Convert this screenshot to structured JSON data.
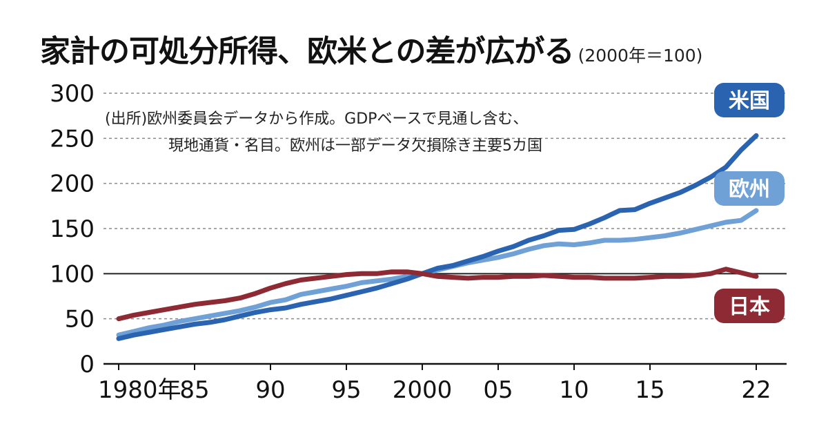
{
  "title": "家計の可処分所得、欧米との差が広がる",
  "subtitle": "(2000年＝100)",
  "note_line1": "(出所)欧州委員会データから作成。GDPベースで見通し含む、",
  "note_line2": "現地通貨・名目。欧州は一部データ欠損除き主要5カ国",
  "chart_data": {
    "type": "line",
    "x": [
      1980,
      1981,
      1982,
      1983,
      1984,
      1985,
      1986,
      1987,
      1988,
      1989,
      1990,
      1991,
      1992,
      1993,
      1994,
      1995,
      1996,
      1997,
      1998,
      1999,
      2000,
      2001,
      2002,
      2003,
      2004,
      2005,
      2006,
      2007,
      2008,
      2009,
      2010,
      2011,
      2012,
      2013,
      2014,
      2015,
      2016,
      2017,
      2018,
      2019,
      2020,
      2021,
      2022
    ],
    "x_ticks": [
      {
        "value": 1980,
        "label": "1980年"
      },
      {
        "value": 1985,
        "label": "85"
      },
      {
        "value": 1990,
        "label": "90"
      },
      {
        "value": 1995,
        "label": "95"
      },
      {
        "value": 2000,
        "label": "2000"
      },
      {
        "value": 2005,
        "label": "05"
      },
      {
        "value": 2010,
        "label": "10"
      },
      {
        "value": 2015,
        "label": "15"
      },
      {
        "value": 2022,
        "label": "22"
      }
    ],
    "y_ticks": [
      0,
      50,
      100,
      150,
      200,
      250,
      300
    ],
    "xlim": [
      1979,
      2024
    ],
    "ylim": [
      0,
      300
    ],
    "reference_line": 100,
    "grid": "dotted horizontal",
    "series": [
      {
        "name": "米国",
        "color": "#2a63b0",
        "values": [
          28,
          32,
          35,
          38,
          41,
          44,
          46,
          49,
          53,
          57,
          60,
          62,
          66,
          69,
          72,
          76,
          80,
          84,
          89,
          94,
          100,
          106,
          109,
          114,
          119,
          125,
          130,
          137,
          142,
          148,
          149,
          155,
          162,
          170,
          171,
          178,
          184,
          190,
          198,
          207,
          218,
          237,
          253
        ]
      },
      {
        "name": "欧州",
        "color": "#6fa0d6",
        "values": [
          32,
          36,
          40,
          43,
          47,
          50,
          53,
          56,
          59,
          63,
          68,
          71,
          77,
          80,
          83,
          86,
          90,
          92,
          94,
          97,
          100,
          104,
          108,
          112,
          115,
          118,
          122,
          127,
          131,
          133,
          132,
          134,
          137,
          137,
          138,
          140,
          142,
          145,
          149,
          153,
          157,
          159,
          170
        ]
      },
      {
        "name": "日本",
        "color": "#8e2a33",
        "values": [
          50,
          54,
          57,
          60,
          63,
          66,
          68,
          70,
          73,
          78,
          84,
          89,
          93,
          95,
          97,
          99,
          100,
          100,
          102,
          102,
          100,
          97,
          96,
          95,
          96,
          96,
          97,
          97,
          98,
          97,
          96,
          96,
          95,
          95,
          95,
          96,
          97,
          97,
          98,
          100,
          105,
          101,
          97
        ]
      }
    ]
  }
}
